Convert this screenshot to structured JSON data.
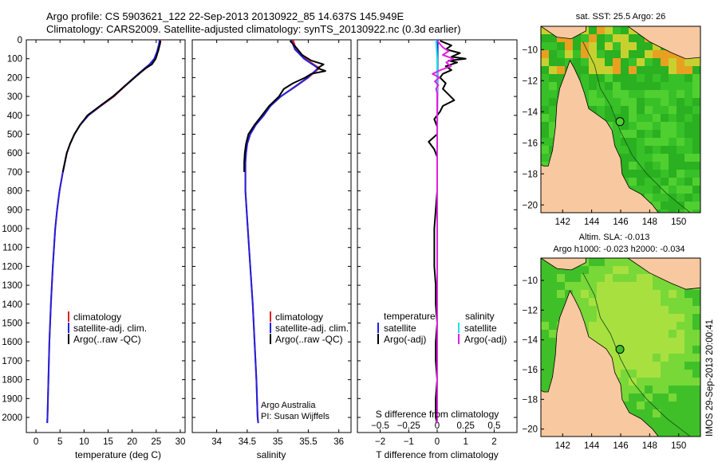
{
  "header": {
    "line1": "Argo profile: CS 5903621_122 22-Sep-2013 20130922_85 14.637S 145.949E",
    "line2": "Climatology: CARS2009. Satellite-adjusted climatology: synTS_20130922.nc (0.3d earlier)"
  },
  "side_stamp": "IMOS 29-Sep-2013 20:00:41",
  "chart_data": [
    {
      "type": "line",
      "id": "temperature",
      "xlabel": "temperature (deg C)",
      "xlim": [
        -2,
        31
      ],
      "xticks": [
        0,
        5,
        10,
        15,
        20,
        25,
        30
      ],
      "xtick_labels": [
        "0",
        "5",
        "10",
        "15",
        "20",
        "25",
        "30"
      ],
      "ylim": [
        2080,
        0
      ],
      "yticks": [
        0,
        100,
        200,
        300,
        400,
        500,
        600,
        700,
        800,
        900,
        1000,
        1100,
        1200,
        1300,
        1400,
        1500,
        1600,
        1700,
        1800,
        1900,
        2000
      ],
      "ytick_labels": [
        "0",
        "100",
        "200",
        "300",
        "400",
        "500",
        "600",
        "700",
        "800",
        "900",
        "1000",
        "1100",
        "1200",
        "1300",
        "1400",
        "1500",
        "1600",
        "1700",
        "1800",
        "1900",
        "2000"
      ],
      "legend": [
        "climatology",
        "satellite-adj. clim.",
        "Argo(..raw -QC)"
      ],
      "series": [
        {
          "name": "climatology",
          "color": "#e02020",
          "depth": [
            0,
            20,
            60,
            100,
            130,
            160,
            200,
            250,
            300,
            350,
            400,
            450,
            500,
            550,
            600,
            700,
            800,
            900,
            1000,
            1200,
            1400,
            1600,
            1800,
            2000,
            2030
          ],
          "values": [
            25.9,
            25.8,
            25.4,
            24.8,
            23.9,
            22.4,
            20.5,
            18.3,
            16.2,
            13.5,
            10.9,
            9.2,
            8.0,
            7.1,
            6.4,
            5.6,
            4.9,
            4.4,
            4.0,
            3.5,
            3.1,
            2.8,
            2.6,
            2.4,
            2.35
          ]
        },
        {
          "name": "satellite-adj. clim.",
          "color": "#2020e0",
          "depth": [
            0,
            20,
            60,
            100,
            130,
            160,
            200,
            250,
            300,
            350,
            400,
            450,
            500,
            550,
            600,
            700,
            800,
            900,
            1000,
            1200,
            1400,
            1600,
            1800,
            2000,
            2030
          ],
          "values": [
            25.7,
            25.6,
            25.2,
            24.6,
            23.6,
            22.2,
            20.4,
            18.2,
            16.1,
            13.4,
            10.9,
            9.2,
            8.0,
            7.1,
            6.4,
            5.6,
            4.9,
            4.4,
            4.0,
            3.5,
            3.1,
            2.8,
            2.6,
            2.4,
            2.35
          ]
        },
        {
          "name": "Argo(..raw -QC)",
          "color": "#000000",
          "depth": [
            5,
            20,
            60,
            100,
            130,
            150,
            180,
            220,
            260,
            300,
            350,
            400,
            450,
            500,
            550,
            600,
            650,
            700
          ],
          "values": [
            25.9,
            25.8,
            25.4,
            24.9,
            24.1,
            22.8,
            21.4,
            19.6,
            17.8,
            16.0,
            13.3,
            10.7,
            9.2,
            8.0,
            7.1,
            6.4,
            6.0,
            5.6
          ]
        }
      ]
    },
    {
      "type": "line",
      "id": "salinity",
      "xlabel": "salinity",
      "xlim": [
        33.6,
        36.2
      ],
      "xticks": [
        34,
        34.5,
        35,
        35.5,
        36
      ],
      "xtick_labels": [
        "34",
        "34.5",
        "35",
        "35.5",
        "36"
      ],
      "ylim": [
        2080,
        0
      ],
      "legend": [
        "climatology",
        "satellite-adj. clim.",
        "Argo(..raw -QC)"
      ],
      "annotations": [
        "Argo Australia",
        "PI: Susan Wijffels"
      ],
      "series": [
        {
          "name": "climatology",
          "color": "#e02020",
          "depth": [
            0,
            50,
            100,
            150,
            200,
            250,
            300,
            350,
            400,
            450,
            500,
            550,
            600,
            650,
            700,
            800,
            900,
            1000,
            1200,
            1400,
            1600,
            1800,
            2000,
            2030
          ],
          "values": [
            35.25,
            35.3,
            35.45,
            35.68,
            35.5,
            35.28,
            35.05,
            34.88,
            34.77,
            34.64,
            34.55,
            34.5,
            34.48,
            34.47,
            34.47,
            34.47,
            34.49,
            34.51,
            34.55,
            34.59,
            34.62,
            34.65,
            34.67,
            34.68
          ]
        },
        {
          "name": "satellite-adj. clim.",
          "color": "#2020e0",
          "depth": [
            0,
            50,
            100,
            150,
            200,
            250,
            300,
            350,
            400,
            450,
            500,
            550,
            600,
            650,
            700,
            800,
            900,
            1000,
            1200,
            1400,
            1600,
            1800,
            2000,
            2030
          ],
          "values": [
            35.22,
            35.28,
            35.43,
            35.66,
            35.49,
            35.27,
            35.05,
            34.88,
            34.77,
            34.64,
            34.55,
            34.5,
            34.48,
            34.47,
            34.47,
            34.47,
            34.49,
            34.51,
            34.55,
            34.59,
            34.62,
            34.65,
            34.67,
            34.68
          ]
        },
        {
          "name": "Argo(..raw -QC)",
          "color": "#000000",
          "depth": [
            5,
            40,
            80,
            110,
            130,
            150,
            165,
            180,
            200,
            230,
            260,
            300,
            350,
            400,
            450,
            500,
            550,
            600,
            650,
            700
          ],
          "values": [
            35.2,
            35.3,
            35.4,
            35.55,
            35.75,
            35.65,
            35.78,
            35.55,
            35.45,
            35.25,
            35.1,
            35.02,
            34.86,
            34.74,
            34.62,
            34.52,
            34.48,
            34.46,
            34.45,
            34.45
          ]
        }
      ]
    },
    {
      "type": "line",
      "id": "difference",
      "xlabel": "T difference from climatology",
      "xlim": [
        -2.8,
        2.8
      ],
      "xticks": [
        -2,
        -1,
        0,
        1,
        2
      ],
      "xtick_labels": [
        "−2",
        "−1",
        "0",
        "1",
        "2"
      ],
      "x2label": "S difference from climatology",
      "x2ticks": [
        -0.5,
        -0.25,
        0,
        0.25,
        0.5
      ],
      "x2tick_labels": [
        "−0.5",
        "−0.25",
        "0",
        "0.25",
        "0.5"
      ],
      "ylim": [
        2080,
        0
      ],
      "legend_temperature": {
        "title": "temperature",
        "items": [
          "satellite",
          "Argo(-adj)"
        ]
      },
      "legend_salinity": {
        "title": "salinity",
        "items": [
          "satellite",
          "Argo(-adj)"
        ]
      },
      "series": [
        {
          "name": "T satellite",
          "color": "#2020e0",
          "depth": [
            0,
            500,
            1000,
            1500,
            2030
          ],
          "values": [
            0.02,
            0.0,
            0.0,
            0.0,
            0.0
          ]
        },
        {
          "name": "T Argo(-adj)",
          "color": "#000000",
          "depth": [
            5,
            30,
            50,
            70,
            90,
            100,
            110,
            120,
            140,
            160,
            180,
            200,
            230,
            260,
            290,
            320,
            350,
            380,
            420,
            460,
            500,
            540,
            580,
            620,
            700,
            800,
            900,
            1000,
            1100,
            1200,
            1300,
            1400,
            1500,
            1600,
            1700,
            1800,
            1900,
            2000,
            2030
          ],
          "values": [
            0.1,
            0.5,
            0.3,
            0.8,
            0.5,
            1.0,
            0.4,
            0.7,
            0.3,
            0.5,
            0.2,
            0.1,
            0.3,
            0.2,
            0.4,
            0.6,
            0.2,
            0.1,
            -0.1,
            0.0,
            0.0,
            -0.3,
            -0.1,
            0.0,
            0.0,
            0.0,
            -0.05,
            -0.1,
            -0.1,
            -0.1,
            -0.05,
            -0.05,
            0.0,
            -0.05,
            -0.05,
            0.0,
            -0.05,
            -0.05,
            0.0
          ]
        },
        {
          "name": "S satellite",
          "color": "#20e0e0",
          "depth": [
            0,
            100,
            300,
            600,
            1000,
            1500,
            2030
          ],
          "values": [
            -0.01,
            0.0,
            0.0,
            0.0,
            0.0,
            0.0,
            0.0
          ]
        },
        {
          "name": "S Argo(-adj)",
          "color": "#e020e0",
          "depth": [
            5,
            40,
            60,
            80,
            100,
            120,
            140,
            160,
            180,
            200,
            220,
            240,
            260,
            280,
            300,
            400,
            600,
            1000,
            1500,
            2030
          ],
          "values": [
            0.0,
            0.05,
            0.1,
            0.05,
            0.14,
            0.08,
            0.12,
            0.03,
            -0.04,
            0.02,
            -0.02,
            0.01,
            -0.01,
            0.0,
            0.0,
            0.0,
            0.0,
            0.0,
            0.0,
            0.0
          ]
        }
      ]
    },
    {
      "type": "heatmap",
      "id": "map-sst",
      "title": "sat. SST: 25.5  Argo: 26",
      "xlim": [
        140.5,
        151.5
      ],
      "ylim": [
        -20.5,
        -8.5
      ],
      "xticks": [
        142,
        144,
        146,
        148,
        150
      ],
      "xtick_labels": [
        "142",
        "144",
        "146",
        "148",
        "150"
      ],
      "yticks": [
        -10,
        -12,
        -14,
        -16,
        -18,
        -20
      ],
      "ytick_labels": [
        "−10",
        "−12",
        "−14",
        "−16",
        "−18",
        "−20"
      ],
      "float_position": [
        145.949,
        -14.637
      ]
    },
    {
      "type": "heatmap",
      "id": "map-sla",
      "title": "Altim. SLA: -0.013",
      "subtitle": "Argo h1000: -0.023  h2000: -0.034",
      "xlim": [
        140.5,
        151.5
      ],
      "ylim": [
        -20.5,
        -8.5
      ],
      "xticks": [
        142,
        144,
        146,
        148,
        150
      ],
      "xtick_labels": [
        "142",
        "144",
        "146",
        "148",
        "150"
      ],
      "yticks": [
        -10,
        -12,
        -14,
        -16,
        -18,
        -20
      ],
      "ytick_labels": [
        "−10",
        "−12",
        "−14",
        "−16",
        "−18",
        "−20"
      ],
      "float_position": [
        145.949,
        -14.637
      ]
    }
  ]
}
